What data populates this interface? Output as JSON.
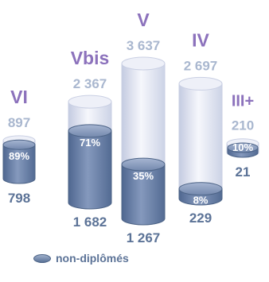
{
  "chart_data": {
    "type": "bar",
    "style": "3d-cylinders",
    "categories": [
      "VI",
      "Vbis",
      "V",
      "IV",
      "III+"
    ],
    "series": [
      {
        "name": "",
        "values": [
          897,
          2367,
          3637,
          2697,
          210
        ],
        "labels": [
          "897",
          "2 367",
          "3 637",
          "2 697",
          "210"
        ]
      },
      {
        "name": "non-diplômés",
        "values": [
          798,
          1682,
          1267,
          229,
          21
        ],
        "labels": [
          "798",
          "1 682",
          "1 267",
          "229",
          "21"
        ]
      }
    ],
    "percent_labels": [
      "89%",
      "71%",
      "35%",
      "8%",
      "10%"
    ],
    "legend": {
      "position": "bottom-left",
      "label": "non-diplômés"
    },
    "colors": {
      "level_label": "#8c72bc",
      "total_label": "#a9b7cf",
      "part_label": "#5c7397",
      "outer_cylinder": "#dfe3f1",
      "inner_cylinder": "#6e86ab"
    },
    "grid": false
  }
}
